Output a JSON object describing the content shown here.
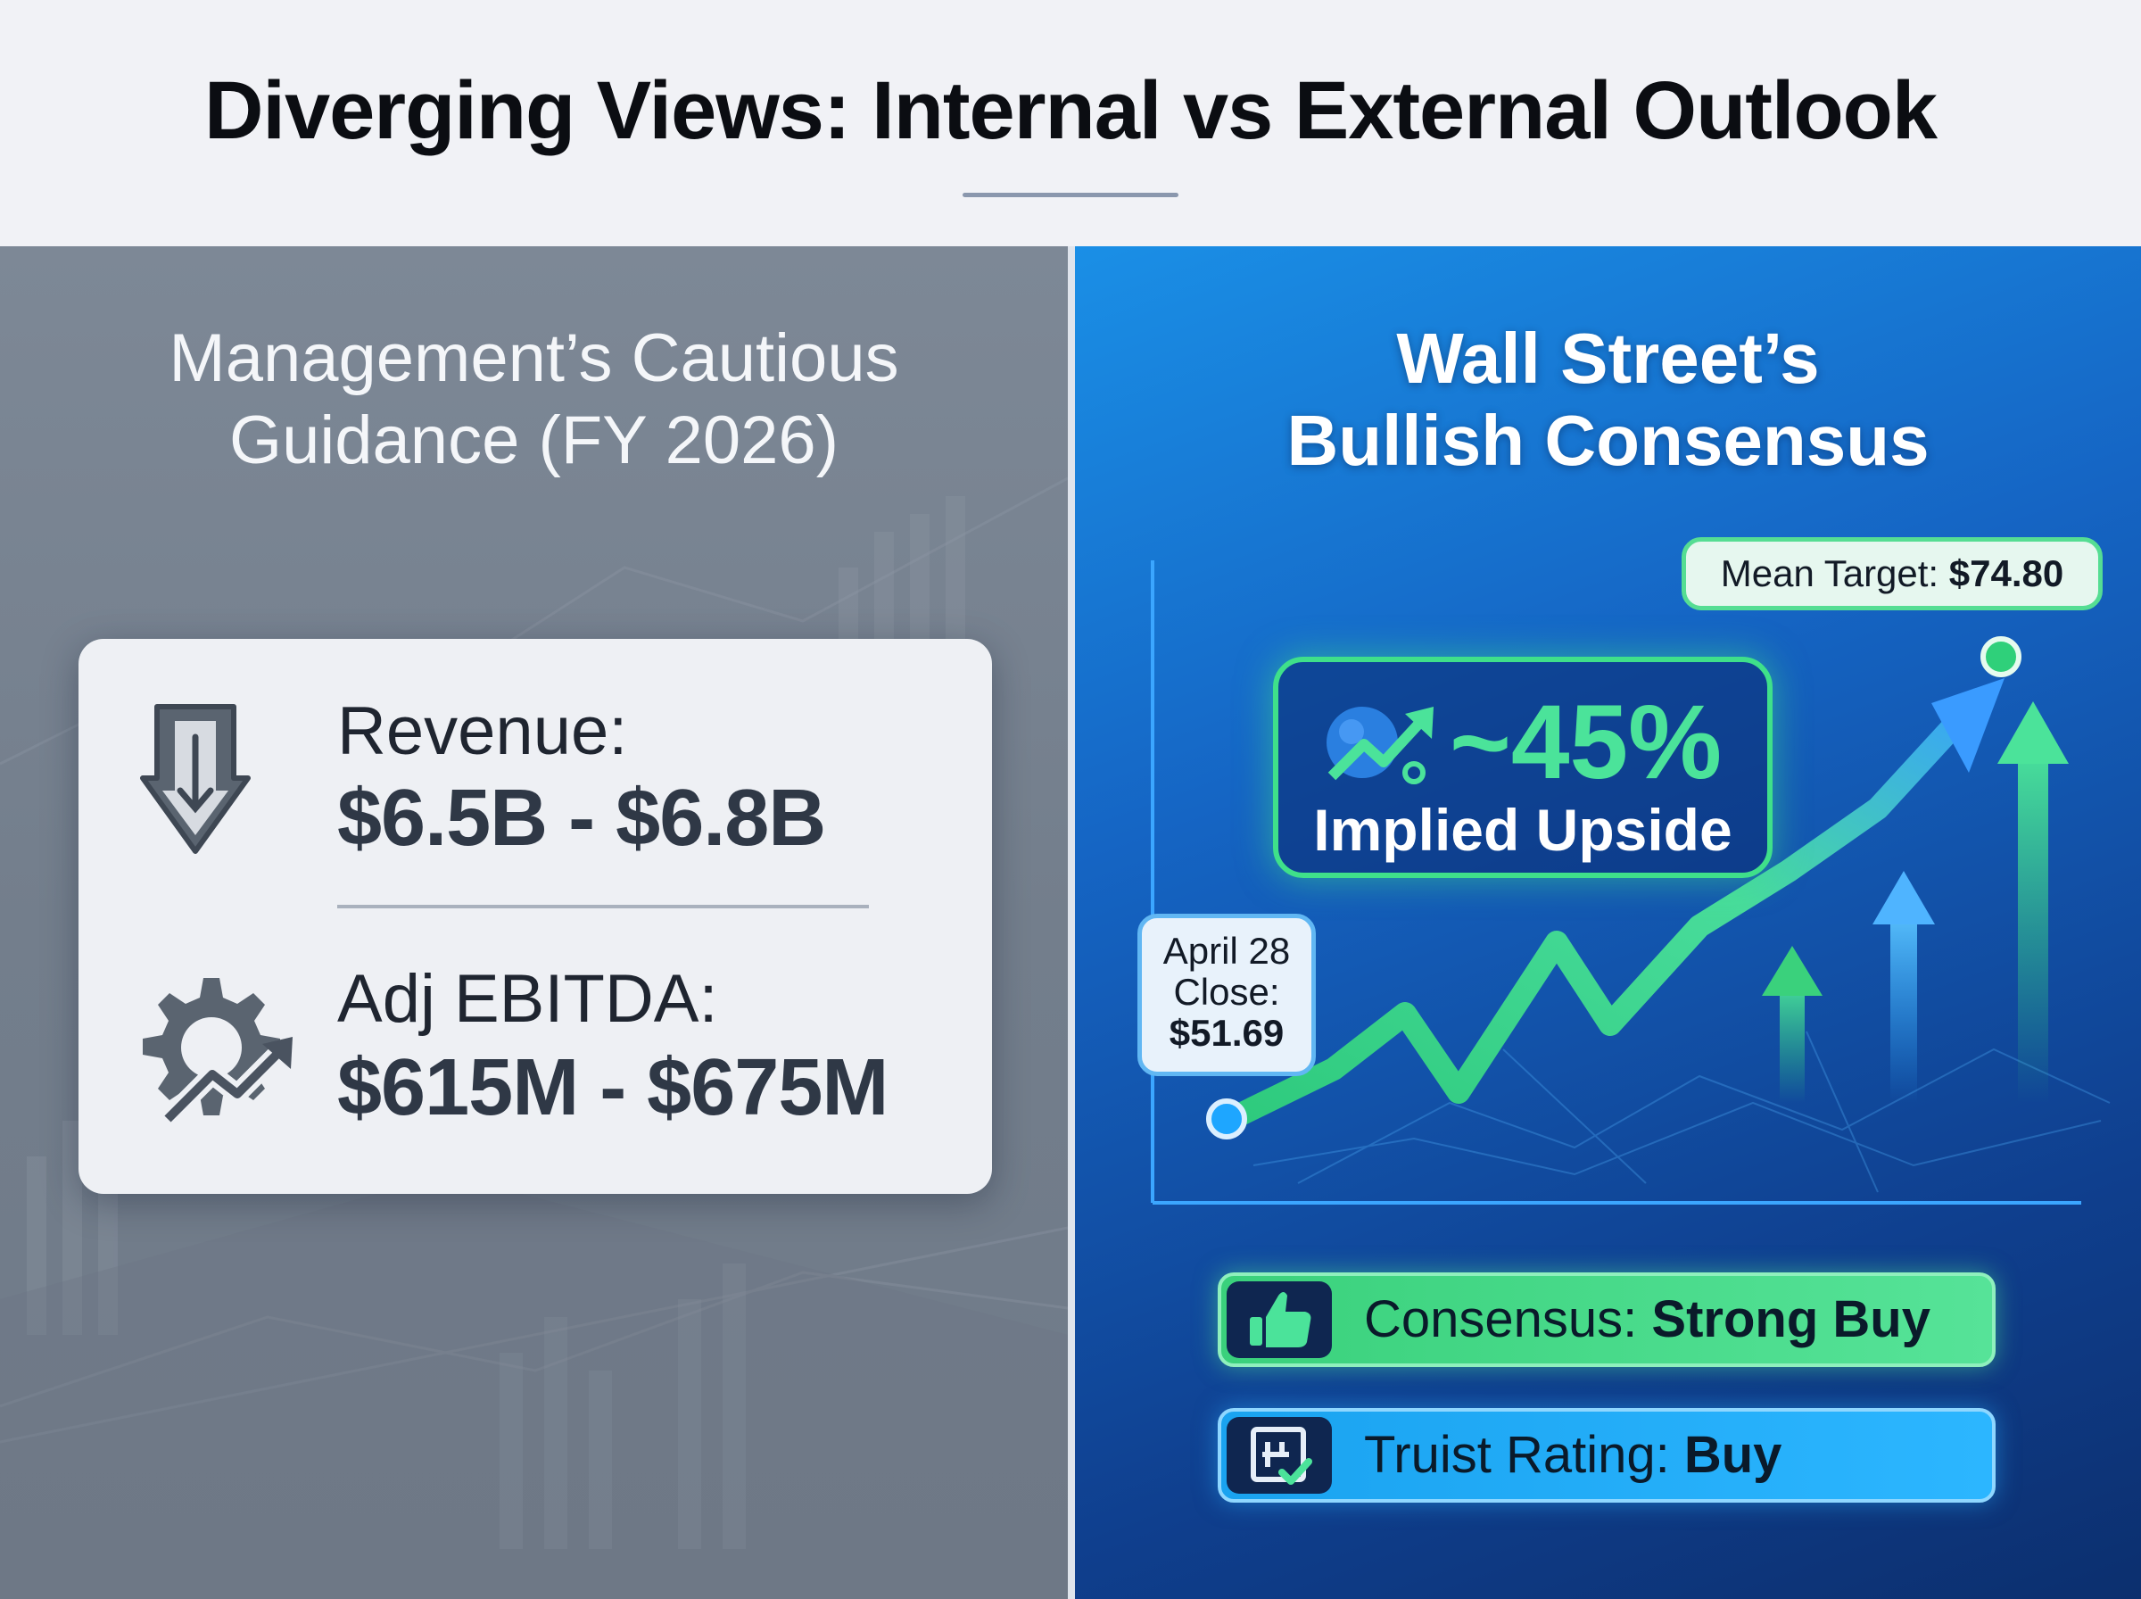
{
  "title": "Diverging Views: Internal vs External Outlook",
  "left": {
    "heading_line1": "Management’s Cautious",
    "heading_line2": "Guidance (FY 2026)",
    "revenue": {
      "label": "Revenue:",
      "value": "$6.5B - $6.8B",
      "icon": "down-arrow-icon"
    },
    "ebitda": {
      "label": "Adj EBITDA:",
      "value": "$615M - $675M",
      "icon": "gear-growth-icon"
    }
  },
  "right": {
    "heading_line1": "Wall Street’s",
    "heading_line2": "Bullish Consensus",
    "upside": {
      "value": "~45%",
      "label": "Implied Upside",
      "icon": "growth-chart-icon"
    },
    "start": {
      "line1": "April 28",
      "line2": "Close:",
      "value": "$51.69",
      "price": 51.69
    },
    "target": {
      "label": "Mean Target:",
      "value": "$74.80",
      "price": 74.8
    },
    "consensus": {
      "label": "Consensus:",
      "value": "Strong Buy",
      "icon": "thumbs-up-icon"
    },
    "truist": {
      "label": "Truist Rating:",
      "value": "Buy",
      "icon": "rating-check-icon"
    }
  },
  "colors": {
    "accent_green": "#4be39a",
    "accent_blue": "#2cb6ff",
    "left_panel": "#7a8593",
    "right_panel": "#1565c4"
  }
}
